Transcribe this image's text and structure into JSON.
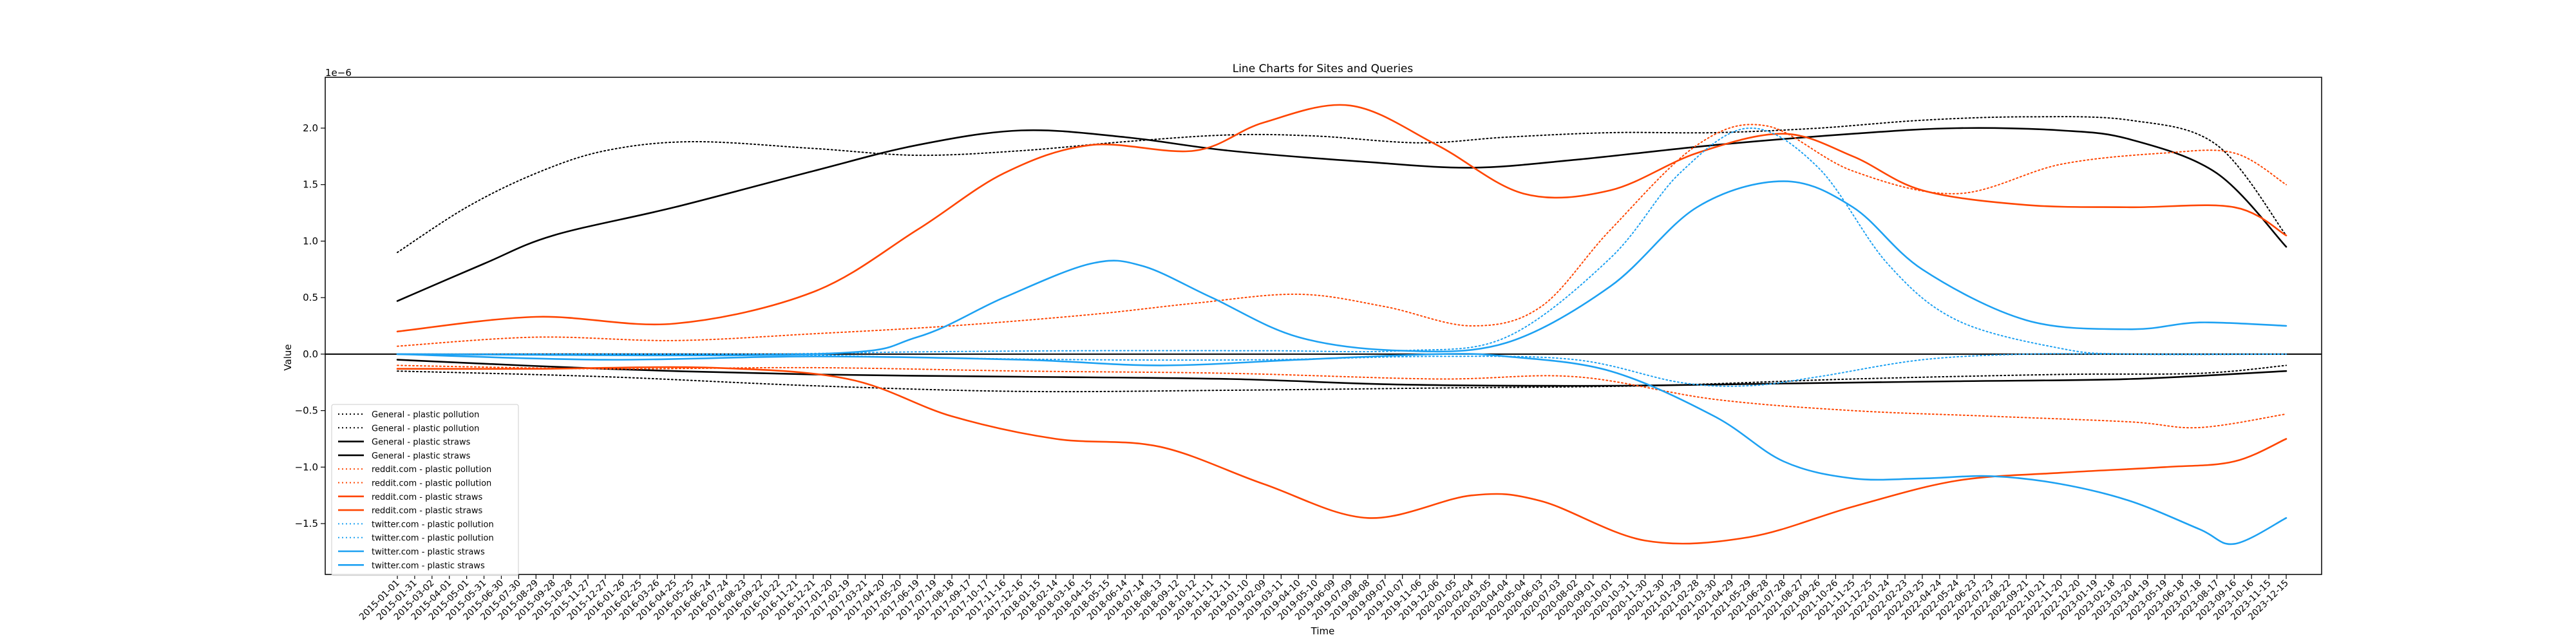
{
  "chart_data": {
    "type": "line",
    "title": "Line Charts for Sites and Queries",
    "xlabel": "Time",
    "ylabel": "Value",
    "y_offset_label": "1e−6",
    "ylim": [
      -1.95,
      2.45
    ],
    "yticks": [
      -1.5,
      -1.0,
      -0.5,
      0.0,
      0.5,
      1.0,
      1.5,
      2.0
    ],
    "ytick_labels": [
      "−1.5",
      "−1.0",
      "−0.5",
      "0.0",
      "0.5",
      "1.0",
      "1.5",
      "2.0"
    ],
    "grid": false,
    "legend_position": "lower-left",
    "x": [
      "2015-01-01",
      "2015-01-31",
      "2015-03-02",
      "2015-04-01",
      "2015-05-01",
      "2015-05-31",
      "2015-06-30",
      "2015-07-30",
      "2015-08-29",
      "2015-09-28",
      "2015-10-28",
      "2015-11-27",
      "2015-12-27",
      "2016-01-26",
      "2016-02-25",
      "2016-03-26",
      "2016-04-25",
      "2016-05-25",
      "2016-06-24",
      "2016-07-24",
      "2016-08-23",
      "2016-09-22",
      "2016-10-22",
      "2016-11-21",
      "2016-12-21",
      "2017-01-20",
      "2017-02-19",
      "2017-03-21",
      "2017-04-20",
      "2017-05-20",
      "2017-06-19",
      "2017-07-19",
      "2017-08-18",
      "2017-09-17",
      "2017-10-17",
      "2017-11-16",
      "2017-12-16",
      "2018-01-15",
      "2018-02-14",
      "2018-03-16",
      "2018-04-15",
      "2018-05-15",
      "2018-06-14",
      "2018-07-14",
      "2018-08-13",
      "2018-09-12",
      "2018-10-12",
      "2018-11-11",
      "2018-12-11",
      "2019-01-10",
      "2019-02-09",
      "2019-03-11",
      "2019-04-10",
      "2019-05-10",
      "2019-06-09",
      "2019-07-09",
      "2019-08-08",
      "2019-09-07",
      "2019-10-07",
      "2019-11-06",
      "2019-12-06",
      "2020-01-05",
      "2020-02-04",
      "2020-03-05",
      "2020-04-04",
      "2020-05-04",
      "2020-06-03",
      "2020-07-03",
      "2020-08-02",
      "2020-09-01",
      "2020-10-01",
      "2020-10-31",
      "2020-11-30",
      "2020-12-30",
      "2021-01-29",
      "2021-02-28",
      "2021-03-30",
      "2021-04-29",
      "2021-05-29",
      "2021-06-28",
      "2021-07-28",
      "2021-08-27",
      "2021-09-26",
      "2021-10-26",
      "2021-11-25",
      "2021-12-25",
      "2022-01-24",
      "2022-02-23",
      "2022-03-25",
      "2022-04-24",
      "2022-05-24",
      "2022-06-23",
      "2022-07-23",
      "2022-08-22",
      "2022-09-21",
      "2022-10-21",
      "2022-11-20",
      "2022-12-20",
      "2023-01-19",
      "2023-02-18",
      "2023-03-20",
      "2023-04-19",
      "2023-05-19",
      "2023-06-18",
      "2023-07-18",
      "2023-08-17",
      "2023-09-16",
      "2023-10-16",
      "2023-11-15",
      "2023-12-15"
    ],
    "series": [
      {
        "name": "General - plastic pollution",
        "color": "#000000",
        "style": "dotted",
        "points": [
          [
            0,
            0.9
          ],
          [
            4,
            1.3
          ],
          [
            8,
            1.6
          ],
          [
            12,
            1.8
          ],
          [
            17,
            1.88
          ],
          [
            24,
            1.82
          ],
          [
            30,
            1.76
          ],
          [
            36,
            1.8
          ],
          [
            42,
            1.88
          ],
          [
            48,
            1.94
          ],
          [
            53,
            1.93
          ],
          [
            59,
            1.87
          ],
          [
            64,
            1.92
          ],
          [
            70,
            1.96
          ],
          [
            76,
            1.96
          ],
          [
            82,
            2.0
          ],
          [
            88,
            2.07
          ],
          [
            94,
            2.1
          ],
          [
            100,
            2.07
          ],
          [
            105,
            1.85
          ],
          [
            109,
            1.05
          ]
        ]
      },
      {
        "name": "General - plastic pollution",
        "color": "#000000",
        "style": "dotted",
        "points": [
          [
            0,
            -0.15
          ],
          [
            12,
            -0.2
          ],
          [
            24,
            -0.28
          ],
          [
            36,
            -0.33
          ],
          [
            48,
            -0.32
          ],
          [
            60,
            -0.3
          ],
          [
            72,
            -0.28
          ],
          [
            84,
            -0.22
          ],
          [
            96,
            -0.18
          ],
          [
            104,
            -0.17
          ],
          [
            109,
            -0.1
          ]
        ]
      },
      {
        "name": "General - plastic straws",
        "color": "#000000",
        "style": "solid",
        "points": [
          [
            0,
            0.47
          ],
          [
            5,
            0.8
          ],
          [
            9,
            1.05
          ],
          [
            16,
            1.3
          ],
          [
            24,
            1.62
          ],
          [
            30,
            1.85
          ],
          [
            36,
            1.98
          ],
          [
            42,
            1.92
          ],
          [
            48,
            1.8
          ],
          [
            56,
            1.7
          ],
          [
            62,
            1.65
          ],
          [
            68,
            1.72
          ],
          [
            76,
            1.85
          ],
          [
            84,
            1.95
          ],
          [
            90,
            2.0
          ],
          [
            96,
            1.98
          ],
          [
            100,
            1.9
          ],
          [
            105,
            1.6
          ],
          [
            109,
            0.95
          ]
        ]
      },
      {
        "name": "General - plastic straws",
        "color": "#000000",
        "style": "solid",
        "points": [
          [
            0,
            -0.05
          ],
          [
            12,
            -0.13
          ],
          [
            24,
            -0.18
          ],
          [
            36,
            -0.2
          ],
          [
            48,
            -0.22
          ],
          [
            58,
            -0.27
          ],
          [
            70,
            -0.28
          ],
          [
            80,
            -0.26
          ],
          [
            90,
            -0.24
          ],
          [
            100,
            -0.22
          ],
          [
            109,
            -0.15
          ]
        ]
      },
      {
        "name": "reddit.com - plastic pollution",
        "color": "#ff4500",
        "style": "dotted",
        "points": [
          [
            0,
            0.07
          ],
          [
            8,
            0.15
          ],
          [
            16,
            0.12
          ],
          [
            24,
            0.18
          ],
          [
            32,
            0.25
          ],
          [
            40,
            0.35
          ],
          [
            46,
            0.45
          ],
          [
            52,
            0.53
          ],
          [
            57,
            0.42
          ],
          [
            62,
            0.25
          ],
          [
            66,
            0.42
          ],
          [
            70,
            1.1
          ],
          [
            75,
            1.85
          ],
          [
            79,
            2.02
          ],
          [
            84,
            1.62
          ],
          [
            90,
            1.42
          ],
          [
            96,
            1.68
          ],
          [
            102,
            1.78
          ],
          [
            106,
            1.78
          ],
          [
            109,
            1.5
          ]
        ]
      },
      {
        "name": "reddit.com - plastic pollution",
        "color": "#ff4500",
        "style": "dotted",
        "points": [
          [
            0,
            -0.1
          ],
          [
            12,
            -0.13
          ],
          [
            24,
            -0.12
          ],
          [
            36,
            -0.15
          ],
          [
            48,
            -0.17
          ],
          [
            60,
            -0.22
          ],
          [
            68,
            -0.2
          ],
          [
            76,
            -0.4
          ],
          [
            84,
            -0.5
          ],
          [
            92,
            -0.55
          ],
          [
            100,
            -0.6
          ],
          [
            104,
            -0.65
          ],
          [
            109,
            -0.53
          ]
        ]
      },
      {
        "name": "reddit.com - plastic straws",
        "color": "#ff4500",
        "style": "solid",
        "points": [
          [
            0,
            0.2
          ],
          [
            8,
            0.33
          ],
          [
            16,
            0.27
          ],
          [
            24,
            0.55
          ],
          [
            30,
            1.1
          ],
          [
            35,
            1.6
          ],
          [
            40,
            1.85
          ],
          [
            46,
            1.8
          ],
          [
            50,
            2.05
          ],
          [
            55,
            2.2
          ],
          [
            60,
            1.85
          ],
          [
            65,
            1.42
          ],
          [
            70,
            1.45
          ],
          [
            75,
            1.78
          ],
          [
            80,
            1.95
          ],
          [
            84,
            1.75
          ],
          [
            88,
            1.45
          ],
          [
            94,
            1.32
          ],
          [
            100,
            1.3
          ],
          [
            106,
            1.3
          ],
          [
            109,
            1.05
          ]
        ]
      },
      {
        "name": "reddit.com - plastic straws",
        "color": "#ff4500",
        "style": "solid",
        "points": [
          [
            0,
            -0.13
          ],
          [
            8,
            -0.13
          ],
          [
            18,
            -0.12
          ],
          [
            26,
            -0.22
          ],
          [
            32,
            -0.55
          ],
          [
            38,
            -0.75
          ],
          [
            44,
            -0.82
          ],
          [
            50,
            -1.15
          ],
          [
            56,
            -1.45
          ],
          [
            62,
            -1.25
          ],
          [
            66,
            -1.3
          ],
          [
            72,
            -1.65
          ],
          [
            78,
            -1.62
          ],
          [
            84,
            -1.35
          ],
          [
            90,
            -1.12
          ],
          [
            96,
            -1.05
          ],
          [
            102,
            -1.0
          ],
          [
            106,
            -0.95
          ],
          [
            109,
            -0.75
          ]
        ]
      },
      {
        "name": "twitter.com - plastic pollution",
        "color": "#1da1f2",
        "style": "dotted",
        "points": [
          [
            0,
            0.0
          ],
          [
            20,
            0.0
          ],
          [
            30,
            0.02
          ],
          [
            40,
            0.03
          ],
          [
            50,
            0.03
          ],
          [
            58,
            0.03
          ],
          [
            64,
            0.15
          ],
          [
            70,
            0.85
          ],
          [
            74,
            1.6
          ],
          [
            78,
            2.0
          ],
          [
            82,
            1.65
          ],
          [
            86,
            0.8
          ],
          [
            90,
            0.3
          ],
          [
            96,
            0.05
          ],
          [
            100,
            0.0
          ],
          [
            109,
            0.0
          ]
        ]
      },
      {
        "name": "twitter.com - plastic pollution",
        "color": "#1da1f2",
        "style": "dotted",
        "points": [
          [
            0,
            0.0
          ],
          [
            20,
            0.0
          ],
          [
            30,
            -0.03
          ],
          [
            40,
            -0.05
          ],
          [
            50,
            -0.05
          ],
          [
            60,
            -0.02
          ],
          [
            68,
            -0.05
          ],
          [
            74,
            -0.25
          ],
          [
            78,
            -0.28
          ],
          [
            82,
            -0.2
          ],
          [
            88,
            -0.05
          ],
          [
            94,
            0.0
          ],
          [
            100,
            0.0
          ],
          [
            109,
            0.0
          ]
        ]
      },
      {
        "name": "twitter.com - plastic straws",
        "color": "#1da1f2",
        "style": "solid",
        "points": [
          [
            0,
            0.0
          ],
          [
            24,
            0.0
          ],
          [
            30,
            0.15
          ],
          [
            35,
            0.5
          ],
          [
            40,
            0.8
          ],
          [
            43,
            0.78
          ],
          [
            47,
            0.5
          ],
          [
            52,
            0.15
          ],
          [
            58,
            0.03
          ],
          [
            64,
            0.1
          ],
          [
            70,
            0.6
          ],
          [
            75,
            1.3
          ],
          [
            80,
            1.53
          ],
          [
            84,
            1.3
          ],
          [
            88,
            0.75
          ],
          [
            94,
            0.3
          ],
          [
            100,
            0.22
          ],
          [
            104,
            0.28
          ],
          [
            109,
            0.25
          ]
        ]
      },
      {
        "name": "twitter.com - plastic straws",
        "color": "#1da1f2",
        "style": "solid",
        "points": [
          [
            0,
            0.0
          ],
          [
            12,
            -0.05
          ],
          [
            24,
            -0.02
          ],
          [
            36,
            -0.05
          ],
          [
            44,
            -0.1
          ],
          [
            52,
            -0.05
          ],
          [
            60,
            0.0
          ],
          [
            64,
            -0.02
          ],
          [
            70,
            -0.15
          ],
          [
            76,
            -0.55
          ],
          [
            80,
            -0.95
          ],
          [
            84,
            -1.1
          ],
          [
            88,
            -1.1
          ],
          [
            92,
            -1.08
          ],
          [
            96,
            -1.15
          ],
          [
            100,
            -1.3
          ],
          [
            104,
            -1.55
          ],
          [
            106,
            -1.68
          ],
          [
            109,
            -1.45
          ]
        ]
      }
    ]
  }
}
